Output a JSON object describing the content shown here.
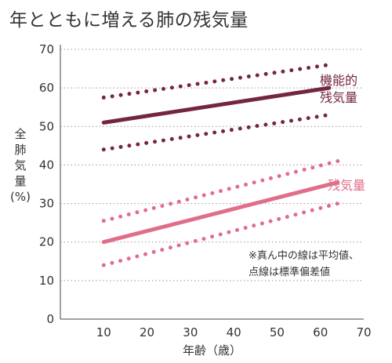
{
  "title": "年とともに増える肺の残気量",
  "colors": {
    "vital": "#74263f",
    "residual": "#e06e89",
    "grid": "#999999",
    "text": "#333333"
  },
  "chart_data": {
    "type": "line",
    "title": "年とともに増える肺の残気量",
    "xlabel": "年齢（歳）",
    "ylabel_lines": [
      "全",
      "肺",
      "気",
      "量",
      "(%)"
    ],
    "xlim": [
      0,
      70
    ],
    "ylim": [
      0,
      70
    ],
    "xticks": [
      10,
      20,
      30,
      40,
      50,
      60,
      70
    ],
    "yticks": [
      0,
      10,
      20,
      30,
      40,
      50,
      60,
      70
    ],
    "grid": "horizontal-dotted",
    "series": [
      {
        "name_lines": [
          "機能的",
          "残気量"
        ],
        "color_key": "vital",
        "mean": [
          [
            10,
            51
          ],
          [
            62,
            60
          ]
        ],
        "upper": [
          [
            10,
            57.5
          ],
          [
            62,
            66
          ]
        ],
        "lower": [
          [
            10,
            44
          ],
          [
            62,
            53
          ]
        ]
      },
      {
        "name_lines": [
          "残気量"
        ],
        "color_key": "residual",
        "mean": [
          [
            10,
            20
          ],
          [
            64,
            35.5
          ]
        ],
        "upper": [
          [
            10,
            25.5
          ],
          [
            64,
            41
          ]
        ],
        "lower": [
          [
            10,
            14
          ],
          [
            64,
            30
          ]
        ]
      }
    ],
    "annotation_lines": [
      "※真ん中の線は平均値、",
      "点線は標準偏差値"
    ]
  }
}
